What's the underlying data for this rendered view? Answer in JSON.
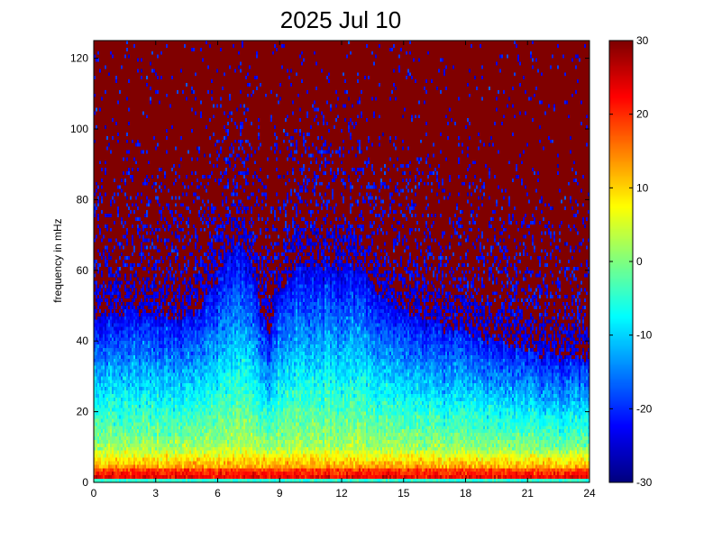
{
  "chart_data": {
    "type": "heatmap",
    "title": "2025 Jul 10",
    "xlabel": "",
    "ylabel": "frequency in mHz",
    "xlim": [
      0,
      24
    ],
    "ylim": [
      0,
      125
    ],
    "x_ticks": [
      0,
      3,
      6,
      9,
      12,
      15,
      18,
      21,
      24
    ],
    "y_ticks": [
      0,
      20,
      40,
      60,
      80,
      100,
      120
    ],
    "colorbar": {
      "range": [
        -30,
        30
      ],
      "ticks": [
        -30,
        -20,
        -10,
        0,
        10,
        20,
        30
      ],
      "colormap": "jet"
    },
    "grid": false,
    "description_of_values": "spectral power vs time (h) and frequency (mHz); high-frequency region saturated at +30, broadband low-frequency power below ~20 mHz, enhanced energy reaching ~70 mHz around 6.5-8 h and ~65 mHz around 10-13 h, a power minimum notch near 8.5 h, and the upper envelope of enhanced power descending from ~55 mHz at 14 h to ~40 mHz by 24 h",
    "envelope": {
      "hours": [
        0,
        2,
        4,
        5,
        6,
        6.5,
        7,
        7.5,
        8,
        8.5,
        9,
        10,
        11,
        12,
        13,
        14,
        16,
        18,
        20,
        22,
        24
      ],
      "upper_edge_mhz": [
        50,
        52,
        50,
        52,
        62,
        70,
        72,
        68,
        55,
        46,
        58,
        66,
        66,
        66,
        64,
        55,
        50,
        46,
        43,
        40,
        38
      ]
    }
  }
}
